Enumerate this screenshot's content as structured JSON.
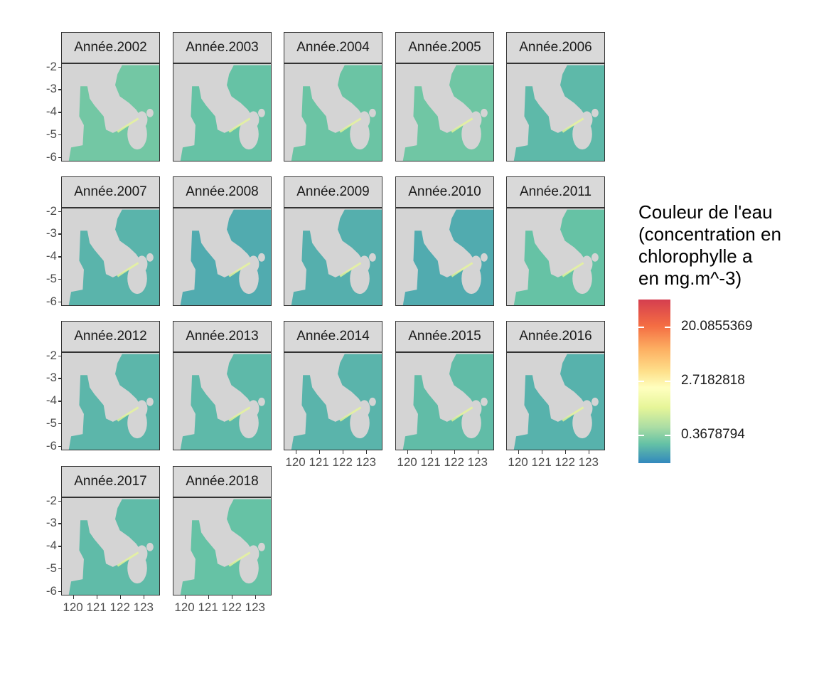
{
  "panels": [
    {
      "label": "Année.2002",
      "chl_level": 0.55
    },
    {
      "label": "Année.2003",
      "chl_level": 0.5
    },
    {
      "label": "Année.2004",
      "chl_level": 0.52
    },
    {
      "label": "Année.2005",
      "chl_level": 0.54
    },
    {
      "label": "Année.2006",
      "chl_level": 0.42
    },
    {
      "label": "Année.2007",
      "chl_level": 0.38
    },
    {
      "label": "Année.2008",
      "chl_level": 0.3
    },
    {
      "label": "Année.2009",
      "chl_level": 0.34
    },
    {
      "label": "Année.2010",
      "chl_level": 0.3
    },
    {
      "label": "Année.2011",
      "chl_level": 0.5
    },
    {
      "label": "Année.2012",
      "chl_level": 0.4
    },
    {
      "label": "Année.2013",
      "chl_level": 0.42
    },
    {
      "label": "Année.2014",
      "chl_level": 0.38
    },
    {
      "label": "Année.2015",
      "chl_level": 0.45
    },
    {
      "label": "Année.2016",
      "chl_level": 0.36
    },
    {
      "label": "Année.2017",
      "chl_level": 0.44
    },
    {
      "label": "Année.2018",
      "chl_level": 0.5
    }
  ],
  "axes": {
    "y_ticks": [
      "-2",
      "-3",
      "-4",
      "-5",
      "-6"
    ],
    "y_values": [
      -2,
      -3,
      -4,
      -5,
      -6
    ],
    "x_ticks": [
      "120",
      "121",
      "122",
      "123"
    ],
    "x_values": [
      120,
      121,
      122,
      123
    ],
    "x_range": [
      119.5,
      123.7
    ],
    "y_range": [
      -6.2,
      -1.85
    ]
  },
  "legend": {
    "title": "Couleur de l'eau\n(concentration en\nchlorophylle a\nen mg.m^-3)",
    "labels": [
      "20.0855369",
      "2.7182818",
      "0.3678794"
    ],
    "values": [
      20.0855369,
      2.7182818,
      0.3678794
    ],
    "palette": [
      "#d53e4f",
      "#f46d43",
      "#fdae61",
      "#fee08b",
      "#ffffbf",
      "#e6f598",
      "#abdda4",
      "#66c2a5",
      "#3288bd"
    ]
  },
  "colors": {
    "land": "#d4d4d4",
    "water_low": "#3288bd",
    "water_mid": "#66c2a5",
    "water_high": "#e6f598",
    "strip_bg": "#d9d9d9"
  }
}
